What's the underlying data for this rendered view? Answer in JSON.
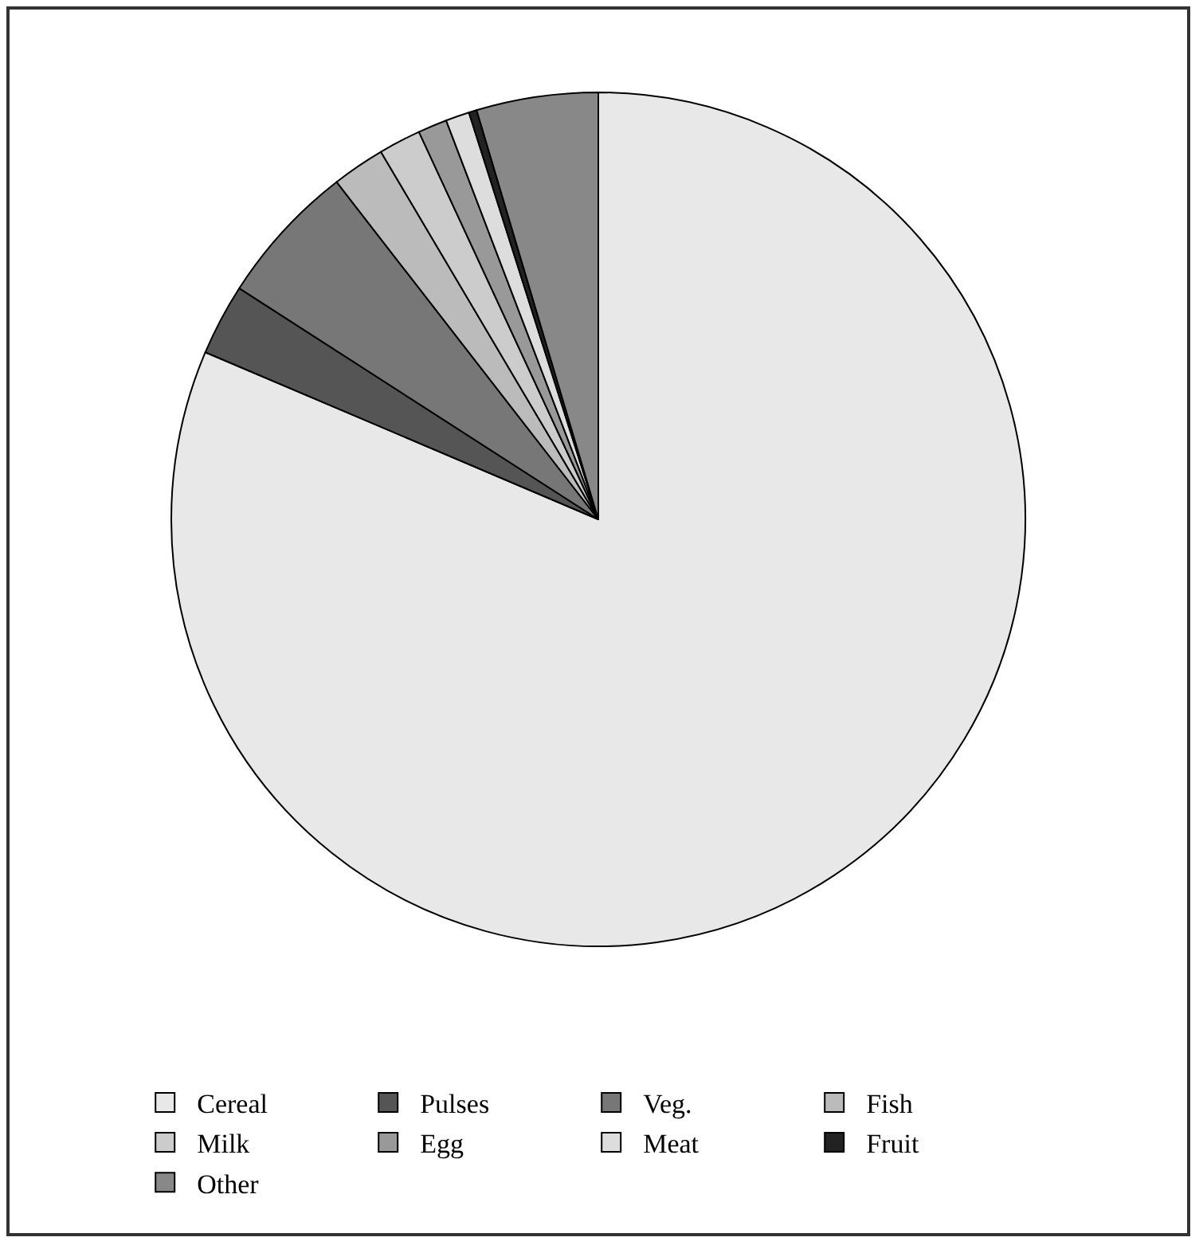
{
  "chart_data": {
    "type": "pie",
    "categories": [
      "Cereal",
      "Pulses",
      "Veg.",
      "Fish",
      "Milk",
      "Egg",
      "Meat",
      "Fruit",
      "Other"
    ],
    "values": [
      81.4,
      2.7,
      5.4,
      2.0,
      1.6,
      1.1,
      0.9,
      0.3,
      4.6
    ],
    "colors": [
      "#e8e8e8",
      "#555555",
      "#777777",
      "#bbbbbb",
      "#cccccc",
      "#999999",
      "#dddddd",
      "#222222",
      "#888888"
    ],
    "legend": "bottom"
  }
}
